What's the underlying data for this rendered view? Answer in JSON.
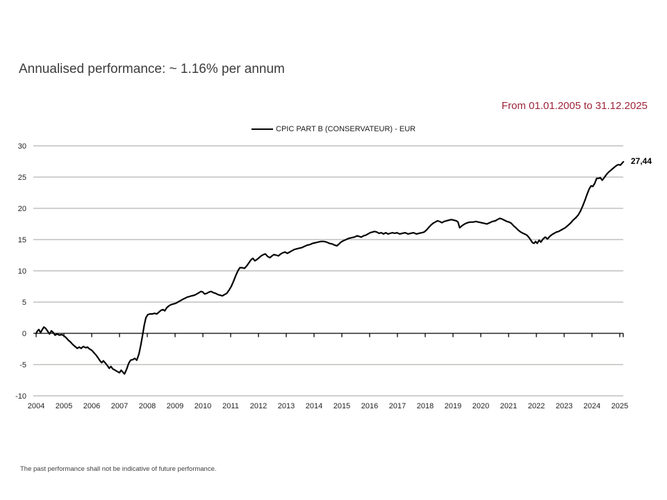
{
  "header": {
    "title": "Annualised performance: ~ 1.16% per annum",
    "date_range": "From 01.01.2005 to 31.12.2025"
  },
  "legend": {
    "label": "CPIC PART B (CONSERVATEUR) - EUR"
  },
  "footer": {
    "disclaimer": "The past performance shall not be indicative of future performance."
  },
  "colors": {
    "date_range_text": "#9e2339",
    "series_line": "#000000",
    "gridline": "#a3a09b",
    "axis_line": "#000000",
    "tick_label": "#222222"
  },
  "chart_data": {
    "type": "line",
    "title": "",
    "xlabel": "",
    "ylabel": "",
    "ylim": [
      -10,
      30
    ],
    "xlim": [
      2003.9,
      2025.6
    ],
    "grid": "horizontal-only",
    "legend_position": "top-center",
    "zero_axis_with_ticks": true,
    "yticks": [
      30,
      25,
      20,
      15,
      10,
      5,
      0,
      -5,
      -10
    ],
    "xticks": [
      2004,
      2005,
      2006,
      2007,
      2008,
      2009,
      2010,
      2011,
      2012,
      2013,
      2014,
      2015,
      2016,
      2017,
      2018,
      2019,
      2020,
      2021,
      2022,
      2023,
      2024,
      2025
    ],
    "end_label": "27,44",
    "end_value": 27.44,
    "series": [
      {
        "name": "CPIC PART B (CONSERVATEUR) - EUR",
        "color": "#000000",
        "points": [
          [
            2004.0,
            0.0
          ],
          [
            2004.05,
            0.4
          ],
          [
            2004.1,
            0.6
          ],
          [
            2004.16,
            0.1
          ],
          [
            2004.22,
            0.6
          ],
          [
            2004.28,
            1.0
          ],
          [
            2004.34,
            0.8
          ],
          [
            2004.42,
            0.3
          ],
          [
            2004.48,
            -0.1
          ],
          [
            2004.55,
            0.4
          ],
          [
            2004.62,
            0.1
          ],
          [
            2004.68,
            -0.3
          ],
          [
            2004.76,
            -0.1
          ],
          [
            2004.84,
            -0.3
          ],
          [
            2004.92,
            -0.2
          ],
          [
            2005.0,
            -0.4
          ],
          [
            2005.08,
            -0.7
          ],
          [
            2005.16,
            -1.1
          ],
          [
            2005.24,
            -1.4
          ],
          [
            2005.32,
            -1.8
          ],
          [
            2005.4,
            -2.1
          ],
          [
            2005.48,
            -2.4
          ],
          [
            2005.55,
            -2.2
          ],
          [
            2005.62,
            -2.4
          ],
          [
            2005.7,
            -2.1
          ],
          [
            2005.78,
            -2.3
          ],
          [
            2005.85,
            -2.2
          ],
          [
            2005.92,
            -2.5
          ],
          [
            2006.0,
            -2.7
          ],
          [
            2006.08,
            -3.1
          ],
          [
            2006.16,
            -3.5
          ],
          [
            2006.24,
            -4.0
          ],
          [
            2006.3,
            -4.4
          ],
          [
            2006.36,
            -4.7
          ],
          [
            2006.42,
            -4.4
          ],
          [
            2006.5,
            -4.8
          ],
          [
            2006.57,
            -5.2
          ],
          [
            2006.63,
            -5.6
          ],
          [
            2006.69,
            -5.3
          ],
          [
            2006.76,
            -5.7
          ],
          [
            2006.84,
            -5.9
          ],
          [
            2006.92,
            -6.1
          ],
          [
            2007.0,
            -6.3
          ],
          [
            2007.06,
            -5.9
          ],
          [
            2007.12,
            -6.2
          ],
          [
            2007.18,
            -6.5
          ],
          [
            2007.26,
            -5.7
          ],
          [
            2007.33,
            -4.8
          ],
          [
            2007.4,
            -4.3
          ],
          [
            2007.48,
            -4.2
          ],
          [
            2007.55,
            -4.0
          ],
          [
            2007.62,
            -4.3
          ],
          [
            2007.7,
            -3.3
          ],
          [
            2007.77,
            -1.8
          ],
          [
            2007.83,
            -0.3
          ],
          [
            2007.89,
            1.3
          ],
          [
            2007.95,
            2.5
          ],
          [
            2008.02,
            3.0
          ],
          [
            2008.1,
            3.1
          ],
          [
            2008.18,
            3.1
          ],
          [
            2008.26,
            3.2
          ],
          [
            2008.34,
            3.1
          ],
          [
            2008.42,
            3.4
          ],
          [
            2008.5,
            3.7
          ],
          [
            2008.57,
            3.8
          ],
          [
            2008.63,
            3.6
          ],
          [
            2008.7,
            4.1
          ],
          [
            2008.78,
            4.4
          ],
          [
            2008.86,
            4.6
          ],
          [
            2008.94,
            4.7
          ],
          [
            2009.02,
            4.8
          ],
          [
            2009.1,
            5.0
          ],
          [
            2009.18,
            5.2
          ],
          [
            2009.26,
            5.4
          ],
          [
            2009.35,
            5.6
          ],
          [
            2009.44,
            5.8
          ],
          [
            2009.52,
            5.9
          ],
          [
            2009.6,
            6.0
          ],
          [
            2009.7,
            6.1
          ],
          [
            2009.78,
            6.3
          ],
          [
            2009.86,
            6.5
          ],
          [
            2009.93,
            6.7
          ],
          [
            2010.0,
            6.6
          ],
          [
            2010.06,
            6.3
          ],
          [
            2010.14,
            6.4
          ],
          [
            2010.22,
            6.6
          ],
          [
            2010.3,
            6.7
          ],
          [
            2010.38,
            6.5
          ],
          [
            2010.46,
            6.4
          ],
          [
            2010.54,
            6.2
          ],
          [
            2010.62,
            6.1
          ],
          [
            2010.7,
            6.0
          ],
          [
            2010.78,
            6.2
          ],
          [
            2010.86,
            6.4
          ],
          [
            2010.94,
            6.9
          ],
          [
            2011.02,
            7.5
          ],
          [
            2011.1,
            8.3
          ],
          [
            2011.18,
            9.2
          ],
          [
            2011.26,
            10.0
          ],
          [
            2011.33,
            10.5
          ],
          [
            2011.42,
            10.5
          ],
          [
            2011.5,
            10.4
          ],
          [
            2011.58,
            10.8
          ],
          [
            2011.66,
            11.3
          ],
          [
            2011.74,
            11.8
          ],
          [
            2011.8,
            12.0
          ],
          [
            2011.87,
            11.6
          ],
          [
            2011.94,
            11.8
          ],
          [
            2012.02,
            12.1
          ],
          [
            2012.1,
            12.4
          ],
          [
            2012.18,
            12.6
          ],
          [
            2012.25,
            12.7
          ],
          [
            2012.33,
            12.3
          ],
          [
            2012.41,
            12.1
          ],
          [
            2012.49,
            12.4
          ],
          [
            2012.56,
            12.6
          ],
          [
            2012.64,
            12.5
          ],
          [
            2012.72,
            12.4
          ],
          [
            2012.8,
            12.7
          ],
          [
            2012.88,
            12.9
          ],
          [
            2012.96,
            13.0
          ],
          [
            2013.04,
            12.8
          ],
          [
            2013.12,
            13.0
          ],
          [
            2013.2,
            13.2
          ],
          [
            2013.28,
            13.4
          ],
          [
            2013.36,
            13.5
          ],
          [
            2013.45,
            13.6
          ],
          [
            2013.55,
            13.7
          ],
          [
            2013.65,
            13.9
          ],
          [
            2013.75,
            14.1
          ],
          [
            2013.85,
            14.2
          ],
          [
            2013.95,
            14.4
          ],
          [
            2014.05,
            14.5
          ],
          [
            2014.15,
            14.6
          ],
          [
            2014.25,
            14.7
          ],
          [
            2014.35,
            14.7
          ],
          [
            2014.45,
            14.6
          ],
          [
            2014.55,
            14.4
          ],
          [
            2014.65,
            14.3
          ],
          [
            2014.75,
            14.1
          ],
          [
            2014.82,
            14.0
          ],
          [
            2014.9,
            14.3
          ],
          [
            2014.97,
            14.6
          ],
          [
            2015.05,
            14.8
          ],
          [
            2015.15,
            15.0
          ],
          [
            2015.25,
            15.2
          ],
          [
            2015.35,
            15.3
          ],
          [
            2015.45,
            15.4
          ],
          [
            2015.55,
            15.6
          ],
          [
            2015.63,
            15.5
          ],
          [
            2015.7,
            15.4
          ],
          [
            2015.78,
            15.6
          ],
          [
            2015.86,
            15.7
          ],
          [
            2015.94,
            15.9
          ],
          [
            2016.02,
            16.1
          ],
          [
            2016.1,
            16.2
          ],
          [
            2016.18,
            16.3
          ],
          [
            2016.26,
            16.2
          ],
          [
            2016.34,
            16.0
          ],
          [
            2016.42,
            16.1
          ],
          [
            2016.5,
            15.9
          ],
          [
            2016.58,
            16.1
          ],
          [
            2016.66,
            15.9
          ],
          [
            2016.74,
            16.0
          ],
          [
            2016.82,
            16.1
          ],
          [
            2016.9,
            16.0
          ],
          [
            2016.98,
            16.1
          ],
          [
            2017.08,
            15.9
          ],
          [
            2017.18,
            16.0
          ],
          [
            2017.28,
            16.1
          ],
          [
            2017.38,
            15.9
          ],
          [
            2017.48,
            16.0
          ],
          [
            2017.58,
            16.1
          ],
          [
            2017.68,
            15.9
          ],
          [
            2017.78,
            16.0
          ],
          [
            2017.88,
            16.1
          ],
          [
            2017.96,
            16.2
          ],
          [
            2018.04,
            16.5
          ],
          [
            2018.12,
            16.9
          ],
          [
            2018.2,
            17.3
          ],
          [
            2018.28,
            17.6
          ],
          [
            2018.36,
            17.8
          ],
          [
            2018.44,
            18.0
          ],
          [
            2018.52,
            17.9
          ],
          [
            2018.6,
            17.7
          ],
          [
            2018.68,
            17.9
          ],
          [
            2018.76,
            18.0
          ],
          [
            2018.85,
            18.1
          ],
          [
            2018.94,
            18.2
          ],
          [
            2019.03,
            18.1
          ],
          [
            2019.12,
            18.0
          ],
          [
            2019.18,
            17.8
          ],
          [
            2019.24,
            16.9
          ],
          [
            2019.32,
            17.2
          ],
          [
            2019.42,
            17.5
          ],
          [
            2019.52,
            17.7
          ],
          [
            2019.62,
            17.8
          ],
          [
            2019.72,
            17.8
          ],
          [
            2019.82,
            17.9
          ],
          [
            2019.92,
            17.8
          ],
          [
            2020.02,
            17.7
          ],
          [
            2020.12,
            17.6
          ],
          [
            2020.22,
            17.5
          ],
          [
            2020.32,
            17.7
          ],
          [
            2020.42,
            17.9
          ],
          [
            2020.52,
            18.0
          ],
          [
            2020.6,
            18.2
          ],
          [
            2020.68,
            18.4
          ],
          [
            2020.76,
            18.3
          ],
          [
            2020.85,
            18.1
          ],
          [
            2020.94,
            17.9
          ],
          [
            2021.02,
            17.8
          ],
          [
            2021.1,
            17.6
          ],
          [
            2021.18,
            17.2
          ],
          [
            2021.26,
            16.9
          ],
          [
            2021.35,
            16.5
          ],
          [
            2021.44,
            16.2
          ],
          [
            2021.52,
            16.0
          ],
          [
            2021.58,
            15.9
          ],
          [
            2021.66,
            15.7
          ],
          [
            2021.74,
            15.3
          ],
          [
            2021.8,
            14.9
          ],
          [
            2021.86,
            14.5
          ],
          [
            2021.92,
            14.4
          ],
          [
            2021.97,
            14.7
          ],
          [
            2022.03,
            14.4
          ],
          [
            2022.1,
            14.9
          ],
          [
            2022.16,
            14.6
          ],
          [
            2022.24,
            15.1
          ],
          [
            2022.32,
            15.4
          ],
          [
            2022.4,
            15.1
          ],
          [
            2022.48,
            15.5
          ],
          [
            2022.56,
            15.8
          ],
          [
            2022.64,
            16.0
          ],
          [
            2022.72,
            16.2
          ],
          [
            2022.8,
            16.3
          ],
          [
            2022.88,
            16.5
          ],
          [
            2022.96,
            16.7
          ],
          [
            2023.04,
            16.9
          ],
          [
            2023.12,
            17.2
          ],
          [
            2023.22,
            17.6
          ],
          [
            2023.32,
            18.1
          ],
          [
            2023.42,
            18.5
          ],
          [
            2023.5,
            18.9
          ],
          [
            2023.58,
            19.5
          ],
          [
            2023.66,
            20.3
          ],
          [
            2023.74,
            21.2
          ],
          [
            2023.82,
            22.2
          ],
          [
            2023.9,
            23.1
          ],
          [
            2023.97,
            23.6
          ],
          [
            2024.03,
            23.5
          ],
          [
            2024.1,
            24.0
          ],
          [
            2024.17,
            24.8
          ],
          [
            2024.24,
            24.8
          ],
          [
            2024.3,
            24.9
          ],
          [
            2024.37,
            24.5
          ],
          [
            2024.44,
            24.9
          ],
          [
            2024.52,
            25.4
          ],
          [
            2024.6,
            25.8
          ],
          [
            2024.68,
            26.1
          ],
          [
            2024.76,
            26.4
          ],
          [
            2024.84,
            26.7
          ],
          [
            2024.9,
            26.9
          ],
          [
            2024.96,
            27.0
          ],
          [
            2025.02,
            26.9
          ],
          [
            2025.08,
            27.2
          ],
          [
            2025.13,
            27.44
          ]
        ]
      }
    ]
  }
}
